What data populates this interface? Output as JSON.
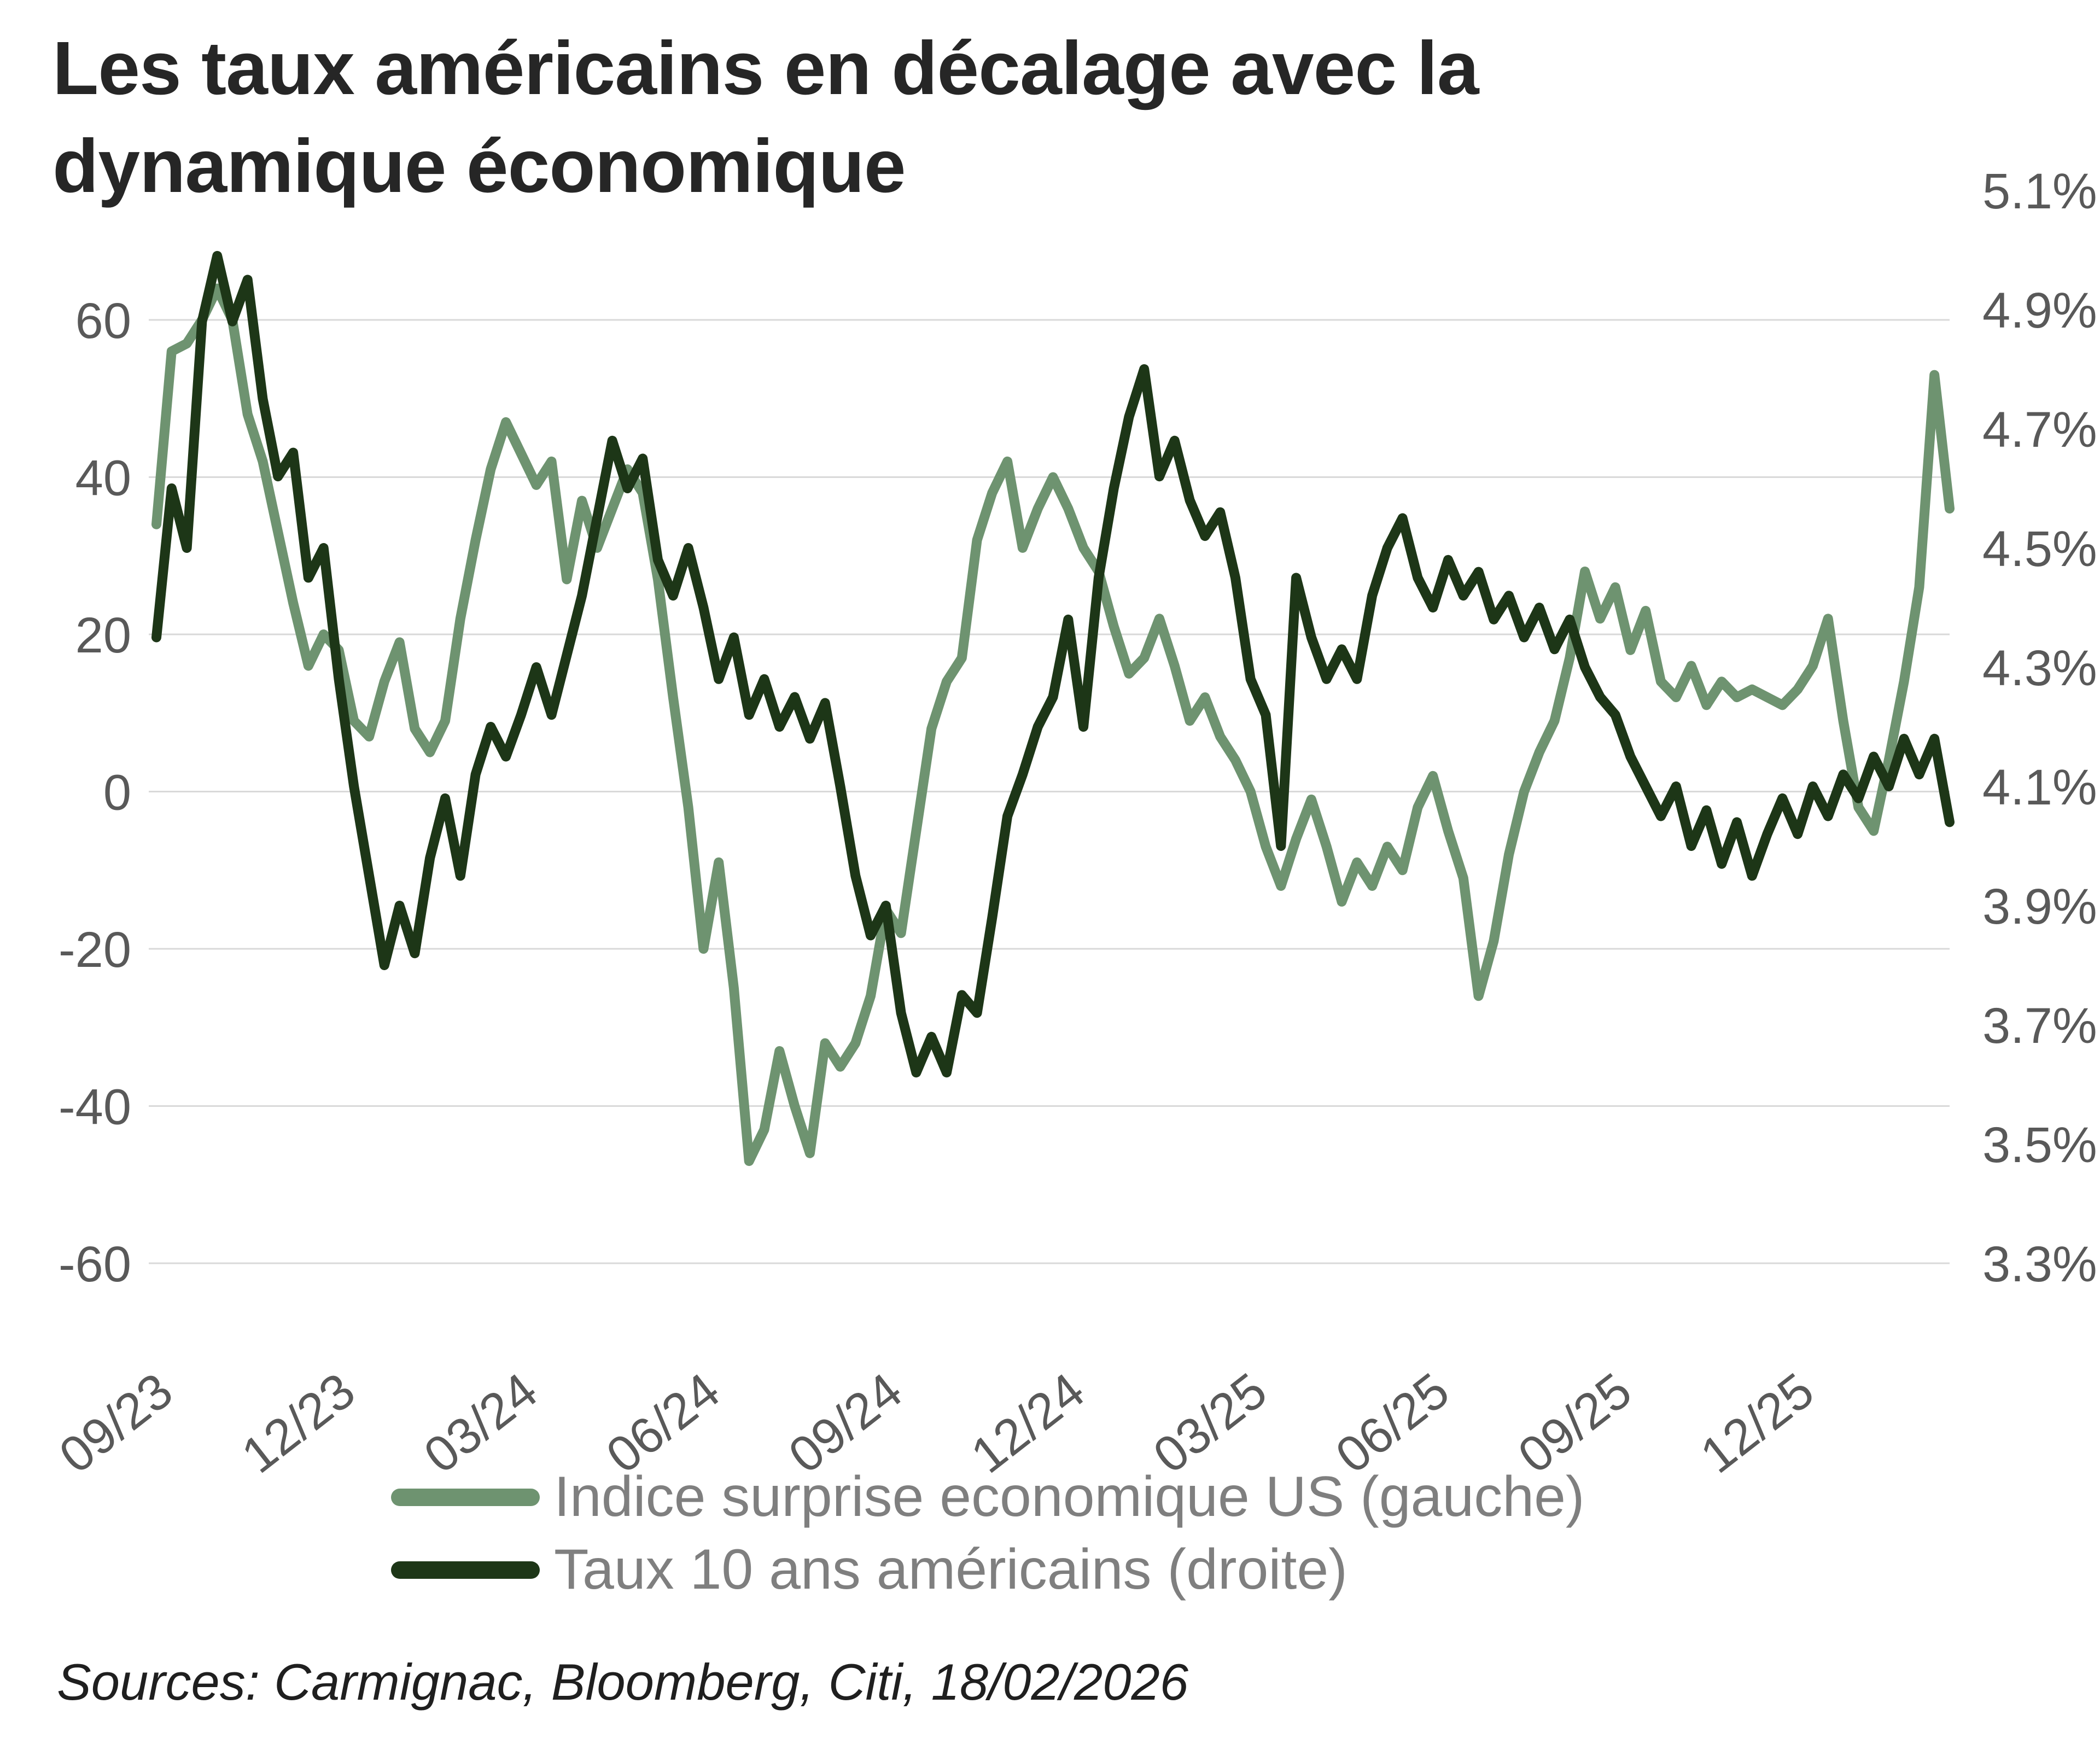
{
  "page": {
    "title_line1": "Les taux américains en décalage avec la",
    "title_line2": "dynamique économique",
    "source": "Sources: Carmignac, Bloomberg, Citi, 18/02/2026"
  },
  "chart_data": {
    "type": "line",
    "title": "Les taux américains en décalage avec la dynamique économique",
    "grid": true,
    "legend_position": "bottom-left",
    "x_tick_labels": [
      "09/23",
      "12/23",
      "03/24",
      "06/24",
      "09/24",
      "12/24",
      "03/25",
      "06/25",
      "09/25",
      "12/25"
    ],
    "x_tick_positions": [
      0,
      3,
      6,
      9,
      12,
      15,
      18,
      21,
      24,
      27
    ],
    "x_range": [
      0,
      29.5
    ],
    "x_step": 0.25,
    "x_unit": "months from 09/2023",
    "left_axis": {
      "range": [
        -60,
        60
      ],
      "ticks": [
        60,
        40,
        20,
        0,
        -20,
        -40,
        -60
      ]
    },
    "right_axis": {
      "range": [
        3.3,
        5.1
      ],
      "ticks": [
        5.1,
        4.9,
        4.7,
        4.5,
        4.3,
        4.1,
        3.9,
        3.7,
        3.5,
        3.3
      ],
      "suffix": "%"
    },
    "series": [
      {
        "name": "Indice surprise economique US (gauche)",
        "axis": "left",
        "color": "#6e9370",
        "values": [
          34,
          56,
          57,
          60,
          64,
          60,
          48,
          42,
          33,
          24,
          16,
          20,
          18,
          9,
          7,
          14,
          19,
          8,
          5,
          9,
          22,
          32,
          41,
          47,
          43,
          39,
          42,
          27,
          37,
          31,
          36,
          41,
          38,
          27,
          12,
          -2,
          -20,
          -9,
          -25,
          -47,
          -43,
          -33,
          -40,
          -46,
          -32,
          -35,
          -32,
          -26,
          -15,
          -18,
          -5,
          8,
          14,
          17,
          32,
          38,
          42,
          31,
          36,
          40,
          36,
          31,
          28,
          21,
          15,
          17,
          22,
          16,
          9,
          12,
          7,
          4,
          0,
          -7,
          -12,
          -6,
          -1,
          -7,
          -14,
          -9,
          -12,
          -7,
          -10,
          -2,
          2,
          -5,
          -11,
          -26,
          -19,
          -8,
          0,
          5,
          9,
          17,
          28,
          22,
          26,
          18,
          23,
          14,
          12,
          16,
          11,
          14,
          12,
          13,
          12,
          11,
          13,
          16,
          22,
          9,
          -2,
          -5,
          4,
          14,
          26,
          53,
          36
        ]
      },
      {
        "name": "Taux 10 ans américains (droite)",
        "axis": "right",
        "color": "#1d3617",
        "values": [
          4.35,
          4.6,
          4.5,
          4.88,
          4.99,
          4.88,
          4.95,
          4.75,
          4.62,
          4.66,
          4.45,
          4.5,
          4.28,
          4.1,
          3.95,
          3.8,
          3.9,
          3.82,
          3.98,
          4.08,
          3.95,
          4.12,
          4.2,
          4.15,
          4.22,
          4.3,
          4.22,
          4.32,
          4.42,
          4.55,
          4.68,
          4.6,
          4.65,
          4.48,
          4.42,
          4.5,
          4.4,
          4.28,
          4.35,
          4.22,
          4.28,
          4.2,
          4.25,
          4.18,
          4.24,
          4.1,
          3.95,
          3.85,
          3.9,
          3.72,
          3.62,
          3.68,
          3.62,
          3.75,
          3.72,
          3.88,
          4.05,
          4.12,
          4.2,
          4.25,
          4.38,
          4.2,
          4.45,
          4.6,
          4.72,
          4.8,
          4.62,
          4.68,
          4.58,
          4.52,
          4.56,
          4.45,
          4.28,
          4.22,
          4.0,
          4.45,
          4.35,
          4.28,
          4.33,
          4.28,
          4.42,
          4.5,
          4.55,
          4.45,
          4.4,
          4.48,
          4.42,
          4.46,
          4.38,
          4.42,
          4.35,
          4.4,
          4.33,
          4.38,
          4.3,
          4.25,
          4.22,
          4.15,
          4.1,
          4.05,
          4.1,
          4.0,
          4.06,
          3.97,
          4.04,
          3.95,
          4.02,
          4.08,
          4.02,
          4.1,
          4.05,
          4.12,
          4.08,
          4.15,
          4.1,
          4.18,
          4.12,
          4.18,
          4.04
        ]
      }
    ]
  }
}
